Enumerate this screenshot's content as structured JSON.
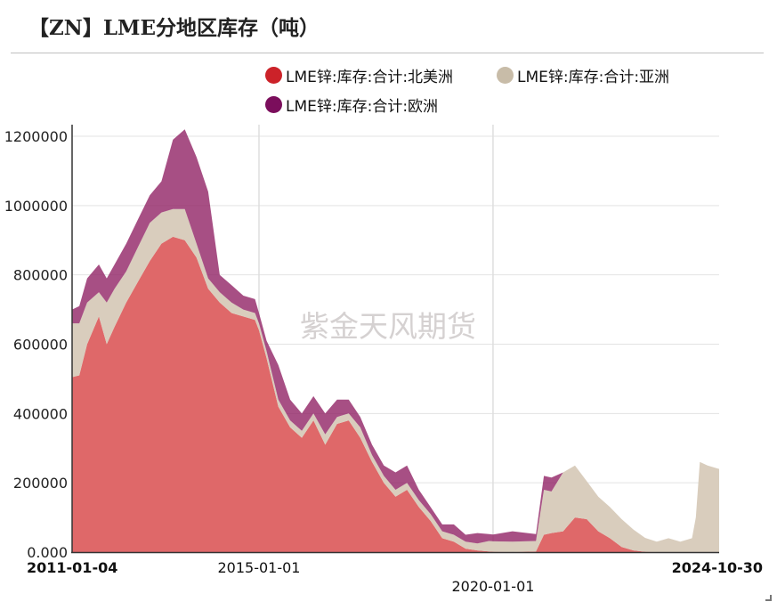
{
  "title": "【ZN】LME分地区库存（吨）",
  "watermark": "紫金天风期货",
  "chart_data": {
    "type": "area",
    "stacked": true,
    "ylim": [
      0,
      1200000
    ],
    "y_ticks": [
      0,
      200000,
      400000,
      600000,
      800000,
      1000000,
      1200000
    ],
    "y_tick_labels": [
      "0.000",
      "200000",
      "400000",
      "600000",
      "800000",
      "1000000",
      "1200000"
    ],
    "x_ticks": [
      {
        "date": "2011-01-04",
        "label": "2011-01-04",
        "bold": true,
        "row": 1
      },
      {
        "date": "2015-01-01",
        "label": "2015-01-01",
        "bold": false,
        "row": 1
      },
      {
        "date": "2020-01-01",
        "label": "2020-01-01",
        "bold": false,
        "row": 2
      },
      {
        "date": "2024-10-30",
        "label": "2024-10-30",
        "bold": true,
        "row": 1
      }
    ],
    "x_range": [
      "2011-01-04",
      "2024-10-30"
    ],
    "grid": true,
    "legend_position": "top",
    "x": [
      "2011-01-04",
      "2011-03-01",
      "2011-05-01",
      "2011-08-01",
      "2011-10-01",
      "2011-12-01",
      "2012-03-01",
      "2012-06-01",
      "2012-09-01",
      "2012-12-01",
      "2013-03-01",
      "2013-06-01",
      "2013-09-01",
      "2013-12-01",
      "2014-03-01",
      "2014-06-01",
      "2014-09-01",
      "2014-12-01",
      "2015-01-01",
      "2015-03-01",
      "2015-06-01",
      "2015-09-01",
      "2015-12-01",
      "2016-03-01",
      "2016-06-01",
      "2016-09-01",
      "2016-12-01",
      "2017-03-01",
      "2017-06-01",
      "2017-09-01",
      "2017-12-01",
      "2018-03-01",
      "2018-06-01",
      "2018-09-01",
      "2018-12-01",
      "2019-03-01",
      "2019-06-01",
      "2019-09-01",
      "2019-12-01",
      "2020-01-01",
      "2020-06-01",
      "2020-12-01",
      "2021-02-01",
      "2021-04-01",
      "2021-07-01",
      "2021-10-01",
      "2022-01-01",
      "2022-04-01",
      "2022-07-01",
      "2022-10-01",
      "2023-01-01",
      "2023-04-01",
      "2023-07-01",
      "2023-10-01",
      "2024-01-01",
      "2024-04-01",
      "2024-05-01",
      "2024-06-01",
      "2024-08-01",
      "2024-10-30"
    ],
    "series": [
      {
        "name": "LME锌:库存:合计:北美洲",
        "color": "#de6566",
        "values": [
          505000,
          510000,
          600000,
          680000,
          600000,
          650000,
          720000,
          780000,
          840000,
          890000,
          910000,
          900000,
          850000,
          760000,
          720000,
          690000,
          680000,
          670000,
          640000,
          560000,
          420000,
          360000,
          330000,
          380000,
          310000,
          370000,
          380000,
          330000,
          260000,
          200000,
          160000,
          180000,
          130000,
          90000,
          40000,
          30000,
          10000,
          5000,
          2000,
          1000,
          0,
          2000,
          50000,
          55000,
          60000,
          100000,
          95000,
          60000,
          40000,
          15000,
          5000,
          1000,
          0,
          0,
          0,
          0,
          0,
          0,
          0,
          0
        ]
      },
      {
        "name": "LME锌:库存:合计:亚洲",
        "color": "#d8ccbc",
        "values": [
          155000,
          150000,
          120000,
          70000,
          120000,
          110000,
          90000,
          100000,
          110000,
          90000,
          80000,
          90000,
          40000,
          30000,
          30000,
          30000,
          20000,
          20000,
          20000,
          20000,
          20000,
          20000,
          20000,
          20000,
          30000,
          20000,
          20000,
          30000,
          20000,
          20000,
          20000,
          20000,
          20000,
          20000,
          20000,
          20000,
          20000,
          20000,
          30000,
          30000,
          30000,
          30000,
          130000,
          120000,
          170000,
          150000,
          110000,
          100000,
          90000,
          80000,
          60000,
          40000,
          30000,
          40000,
          30000,
          40000,
          100000,
          260000,
          250000,
          240000
        ]
      },
      {
        "name": "LME锌:库存:合计:欧洲",
        "color": "#8e1e62",
        "values": [
          40000,
          50000,
          70000,
          80000,
          70000,
          70000,
          80000,
          80000,
          80000,
          90000,
          200000,
          230000,
          250000,
          250000,
          50000,
          50000,
          40000,
          40000,
          30000,
          30000,
          100000,
          60000,
          50000,
          50000,
          60000,
          50000,
          40000,
          30000,
          30000,
          30000,
          50000,
          50000,
          30000,
          20000,
          20000,
          30000,
          20000,
          30000,
          20000,
          20000,
          30000,
          20000,
          40000,
          40000,
          0,
          0,
          0,
          0,
          0,
          0,
          0,
          0,
          0,
          0,
          0,
          0,
          0,
          0,
          0,
          0
        ]
      }
    ]
  }
}
